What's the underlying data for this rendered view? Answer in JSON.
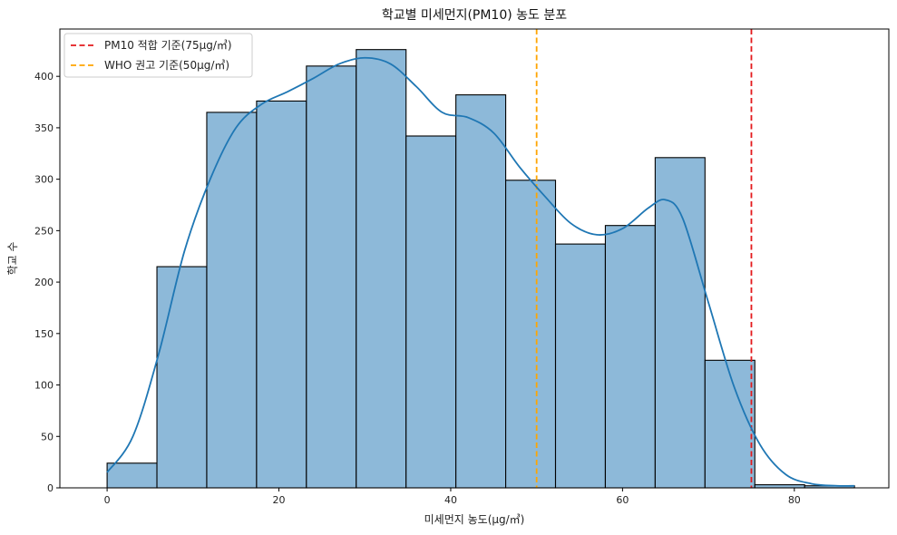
{
  "chart_data": {
    "type": "bar",
    "title": "학교별 미세먼지(PM10) 농도 분포",
    "xlabel": "미세먼지 농도(μg/㎥)",
    "ylabel": "학교 수",
    "xlim": [
      -5.5,
      91
    ],
    "ylim": [
      0,
      446
    ],
    "xticks": [
      0,
      20,
      40,
      60,
      80
    ],
    "yticks": [
      0,
      50,
      100,
      150,
      200,
      250,
      300,
      350,
      400
    ],
    "bins": [
      {
        "x0": 0.0,
        "x1": 5.8,
        "count": 24
      },
      {
        "x0": 5.8,
        "x1": 11.6,
        "count": 215
      },
      {
        "x0": 11.6,
        "x1": 17.4,
        "count": 365
      },
      {
        "x0": 17.4,
        "x1": 23.2,
        "count": 376
      },
      {
        "x0": 23.2,
        "x1": 29.0,
        "count": 410
      },
      {
        "x0": 29.0,
        "x1": 34.8,
        "count": 426
      },
      {
        "x0": 34.8,
        "x1": 40.6,
        "count": 342
      },
      {
        "x0": 40.6,
        "x1": 46.4,
        "count": 382
      },
      {
        "x0": 46.4,
        "x1": 52.2,
        "count": 299
      },
      {
        "x0": 52.2,
        "x1": 58.0,
        "count": 237
      },
      {
        "x0": 58.0,
        "x1": 63.8,
        "count": 255
      },
      {
        "x0": 63.8,
        "x1": 69.6,
        "count": 321
      },
      {
        "x0": 69.6,
        "x1": 75.4,
        "count": 124
      },
      {
        "x0": 75.4,
        "x1": 81.2,
        "count": 3
      },
      {
        "x0": 81.2,
        "x1": 87.0,
        "count": 2
      }
    ],
    "kde": {
      "x": [
        0,
        3,
        6,
        9,
        12,
        15,
        18,
        21,
        24,
        27,
        30,
        33,
        36,
        39,
        42,
        45,
        48,
        51,
        54,
        57,
        60,
        63,
        65,
        67,
        70,
        73,
        76,
        79,
        82,
        85,
        87
      ],
      "y": [
        15,
        50,
        130,
        230,
        300,
        350,
        373,
        385,
        398,
        412,
        418,
        412,
        390,
        365,
        360,
        345,
        312,
        283,
        257,
        246,
        252,
        272,
        280,
        262,
        180,
        98,
        42,
        13,
        4,
        2,
        2
      ]
    },
    "reference_lines": [
      {
        "x": 75,
        "label": "PM10 적합 기준(75μg/㎥)",
        "color": "#e41a1c",
        "style": "dashed"
      },
      {
        "x": 50,
        "label": "WHO 권고 기준(50μg/㎥)",
        "color": "#ffa500",
        "style": "dashed"
      }
    ],
    "bar_color": "#8db9d9",
    "bar_edge_color": "#000000",
    "kde_color": "#1f77b4",
    "legend_position": "top-left",
    "grid": false
  }
}
